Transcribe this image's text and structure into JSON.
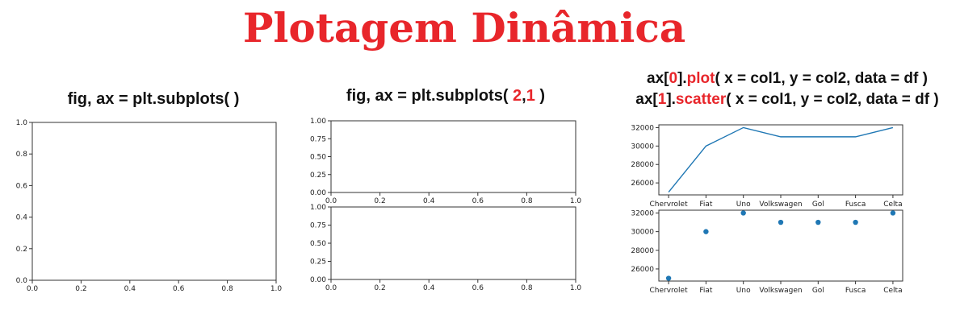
{
  "title": "Plotagem Dinâmica",
  "code1": "fig, ax = plt.subplots( )",
  "code2": {
    "pre": "fig, ax = plt.subplots( ",
    "a": "2",
    "comma": ",",
    "b": "1",
    "post": " )"
  },
  "code3": {
    "line1": {
      "pre": "ax[",
      "idx": "0",
      "mid": "].",
      "fn": "plot",
      "post": "( x = col1, y = col2, data = df )"
    },
    "line2": {
      "pre": "ax[",
      "idx": "1",
      "mid": "].",
      "fn": "scatter",
      "post": "( x = col1, y = col2, data = df )"
    }
  },
  "colors": {
    "title": "#e8262b",
    "highlight": "#e8262b",
    "series": "#1f77b4",
    "axes": "#333333"
  },
  "chart_data": [
    {
      "type": "line",
      "title": "",
      "xlabel": "",
      "ylabel": "",
      "x": [],
      "y": [],
      "xlim": [
        0,
        1
      ],
      "ylim": [
        0,
        1
      ],
      "xticks": [
        "0.0",
        "0.2",
        "0.4",
        "0.6",
        "0.8",
        "1.0"
      ],
      "yticks": [
        "0.0",
        "0.2",
        "0.4",
        "0.6",
        "0.8",
        "1.0"
      ]
    },
    {
      "type": "line",
      "title": "",
      "xlabel": "",
      "ylabel": "",
      "x": [],
      "y": [],
      "xlim": [
        0,
        1
      ],
      "ylim": [
        0,
        1
      ],
      "xticks": [
        "0.0",
        "0.2",
        "0.4",
        "0.6",
        "0.8",
        "1.0"
      ],
      "yticks": [
        "0.00",
        "0.25",
        "0.50",
        "0.75",
        "1.00"
      ]
    },
    {
      "type": "line",
      "title": "",
      "xlabel": "",
      "ylabel": "",
      "x": [],
      "y": [],
      "xlim": [
        0,
        1
      ],
      "ylim": [
        0,
        1
      ],
      "xticks": [
        "0.0",
        "0.2",
        "0.4",
        "0.6",
        "0.8",
        "1.0"
      ],
      "yticks": [
        "0.00",
        "0.25",
        "0.50",
        "0.75",
        "1.00"
      ]
    },
    {
      "type": "line",
      "title": "",
      "xlabel": "",
      "ylabel": "",
      "categories": [
        "Chervrolet",
        "Fiat",
        "Uno",
        "Volkswagen",
        "Gol",
        "Fusca",
        "Celta"
      ],
      "values": [
        25000,
        30000,
        32000,
        31000,
        31000,
        31000,
        32000
      ],
      "ylim": [
        24700,
        32300
      ],
      "yticks": [
        26000,
        28000,
        30000,
        32000
      ]
    },
    {
      "type": "scatter",
      "title": "",
      "xlabel": "",
      "ylabel": "",
      "categories": [
        "Chervrolet",
        "Fiat",
        "Uno",
        "Volkswagen",
        "Gol",
        "Fusca",
        "Celta"
      ],
      "values": [
        25000,
        30000,
        32000,
        31000,
        31000,
        31000,
        32000
      ],
      "ylim": [
        24700,
        32300
      ],
      "yticks": [
        26000,
        28000,
        30000,
        32000
      ]
    }
  ]
}
